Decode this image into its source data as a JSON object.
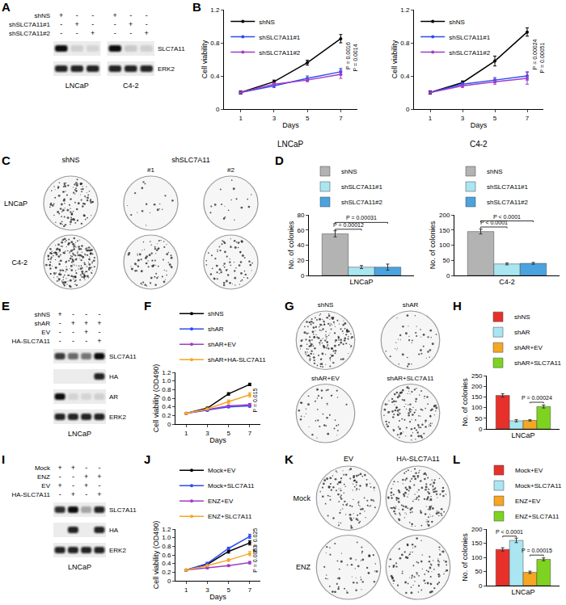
{
  "panel_labels": [
    "A",
    "B",
    "C",
    "D",
    "E",
    "F",
    "G",
    "H",
    "I",
    "J",
    "K",
    "L"
  ],
  "blots": [
    {
      "conditions": [
        {
          "label": "shNS",
          "signs": [
            "+",
            "-",
            "-",
            "+",
            "-",
            "-"
          ]
        },
        {
          "label": "shSLC7A11#1",
          "signs": [
            "-",
            "+",
            "-",
            "-",
            "+",
            "-"
          ]
        },
        {
          "label": "shSLC7A11#2",
          "signs": [
            "-",
            "-",
            "+",
            "-",
            "-",
            "+"
          ]
        }
      ],
      "groups": [
        {
          "name": "LNCaP",
          "size": 3
        },
        {
          "name": "C4-2",
          "size": 3
        }
      ],
      "bands": [
        {
          "name": "SLC7A11",
          "intensity": [
            1,
            0.12,
            0.1,
            1,
            0.15,
            0.12
          ]
        },
        {
          "name": "ERK2",
          "intensity": [
            0.9,
            0.9,
            0.9,
            0.9,
            0.9,
            0.9
          ]
        }
      ]
    },
    {
      "conditions": [
        {
          "label": "shNS",
          "signs": [
            "+",
            "-",
            "-",
            "-"
          ]
        },
        {
          "label": "shAR",
          "signs": [
            "-",
            "+",
            "+",
            "+"
          ]
        },
        {
          "label": "EV",
          "signs": [
            "-",
            "-",
            "+",
            "-"
          ]
        },
        {
          "label": "HA-SLC7A11",
          "signs": [
            "-",
            "-",
            "-",
            "+"
          ]
        }
      ],
      "groups": [
        {
          "name": "LNCaP",
          "size": 4
        }
      ],
      "bands": [
        {
          "name": "SLC7A11",
          "intensity": [
            0.8,
            0.6,
            0.55,
            1
          ]
        },
        {
          "name": "HA",
          "intensity": [
            0,
            0,
            0,
            0.9
          ]
        },
        {
          "name": "AR",
          "intensity": [
            1,
            0.1,
            0.1,
            0.12
          ]
        },
        {
          "name": "ERK2",
          "intensity": [
            0.9,
            0.9,
            0.9,
            0.9
          ]
        }
      ]
    },
    {
      "conditions": [
        {
          "label": "Mock",
          "signs": [
            "+",
            "+",
            "-",
            "-"
          ]
        },
        {
          "label": "ENZ",
          "signs": [
            "-",
            "-",
            "+",
            "+"
          ]
        },
        {
          "label": "EV",
          "signs": [
            "+",
            "-",
            "+",
            "-"
          ]
        },
        {
          "label": "HA-SLC7A11",
          "signs": [
            "-",
            "+",
            "-",
            "+"
          ]
        }
      ],
      "groups": [
        {
          "name": "LNCaP",
          "size": 4
        }
      ],
      "bands": [
        {
          "name": "SLC7A11",
          "intensity": [
            0.85,
            1,
            0.35,
            0.9
          ]
        },
        {
          "name": "HA",
          "intensity": [
            0,
            0.9,
            0,
            0.9
          ]
        },
        {
          "name": "ERK2",
          "intensity": [
            0.9,
            0.9,
            0.9,
            0.9
          ]
        }
      ]
    }
  ],
  "colony_images": [
    {
      "headers": [
        {
          "text": "shNS",
          "span": [
            0,
            0
          ]
        },
        {
          "text": "shSLC7A11",
          "span": [
            1,
            2
          ]
        }
      ],
      "subheaders": [
        null,
        "#1",
        "#2"
      ],
      "rows": [
        "LNCaP",
        "C4-2"
      ],
      "density": [
        [
          0.5,
          0.08,
          0.08
        ],
        [
          1,
          0.35,
          0.35
        ]
      ]
    },
    {
      "cell_labels": [
        [
          "shNS",
          "shAR"
        ],
        [
          "shAR+EV",
          "shAR+SLC7A11"
        ]
      ],
      "density": [
        [
          0.8,
          0.2
        ],
        [
          0.2,
          0.6
        ]
      ]
    },
    {
      "headers": [
        {
          "text": "EV",
          "span": [
            0,
            0
          ]
        },
        {
          "text": "HA-SLC7A11",
          "span": [
            1,
            1
          ]
        }
      ],
      "rows": [
        "Mock",
        "ENZ"
      ],
      "density": [
        [
          0.55,
          0.75
        ],
        [
          0.25,
          0.45
        ]
      ]
    }
  ],
  "chart_data": [
    {
      "type": "line",
      "title": "LNCaP",
      "x_label": "Days",
      "y_label": "Cell viability",
      "x": [
        1,
        3,
        5,
        7
      ],
      "xlim": [
        0,
        8
      ],
      "xticks": [
        1,
        3,
        5,
        7
      ],
      "ylim": [
        0,
        1.2
      ],
      "yticks": [
        0,
        0.4,
        0.8,
        1.2
      ],
      "legend": "upper left",
      "marker": "circle",
      "series": [
        {
          "name": "shNS",
          "color": "#000000",
          "values": [
            0.2,
            0.33,
            0.56,
            0.85
          ],
          "errors": [
            0.02,
            0.02,
            0.03,
            0.05
          ]
        },
        {
          "name": "shSLC7A11#1",
          "color": "#2c4bf0",
          "values": [
            0.2,
            0.28,
            0.37,
            0.45
          ],
          "errors": [
            0.01,
            0.02,
            0.03,
            0.04
          ]
        },
        {
          "name": "shSLC7A11#2",
          "color": "#a03cc8",
          "values": [
            0.2,
            0.3,
            0.35,
            0.42
          ],
          "errors": [
            0.01,
            0.02,
            0.02,
            0.05
          ]
        }
      ],
      "annotations": [
        {
          "text": "P = 0.0016",
          "x": 7.45,
          "y": 0.64
        },
        {
          "text": "P = 0.0014",
          "x": 7.9,
          "y": 0.62
        }
      ]
    },
    {
      "type": "line",
      "title": "C4-2",
      "x_label": "Days",
      "y_label": "Cell viability",
      "x": [
        1,
        3,
        5,
        7
      ],
      "xlim": [
        0,
        8
      ],
      "xticks": [
        1,
        3,
        5,
        7
      ],
      "ylim": [
        0,
        1.2
      ],
      "yticks": [
        0,
        0.4,
        0.8,
        1.2
      ],
      "legend": "upper left",
      "marker": "circle",
      "series": [
        {
          "name": "shNS",
          "color": "#000000",
          "values": [
            0.2,
            0.32,
            0.58,
            0.93
          ],
          "errors": [
            0.02,
            0.02,
            0.06,
            0.05
          ]
        },
        {
          "name": "shSLC7A11#1",
          "color": "#2c4bf0",
          "values": [
            0.2,
            0.3,
            0.35,
            0.4
          ],
          "errors": [
            0.01,
            0.02,
            0.03,
            0.05
          ]
        },
        {
          "name": "shSLC7A11#2",
          "color": "#a03cc8",
          "values": [
            0.2,
            0.28,
            0.33,
            0.37
          ],
          "errors": [
            0.01,
            0.02,
            0.03,
            0.07
          ]
        }
      ],
      "annotations": [
        {
          "text": "P = 0.00024",
          "x": 7.45,
          "y": 0.66
        },
        {
          "text": "P = 0.00051",
          "x": 7.9,
          "y": 0.62
        }
      ]
    },
    {
      "type": "bar",
      "x_label": "LNCaP",
      "y_label": "No. of colonies",
      "ylim": [
        0,
        80
      ],
      "yticks": [
        0,
        20,
        40,
        60,
        80
      ],
      "legend": "top",
      "tick_labels": "y",
      "series": [
        {
          "name": "shNS",
          "color": "#b3b3b3",
          "values": [
            55
          ],
          "errors": [
            4
          ]
        },
        {
          "name": "shSLC7A11#1",
          "color": "#a9e6f2",
          "values": [
            11
          ],
          "errors": [
            2
          ]
        },
        {
          "name": "shSLC7A11#2",
          "color": "#4aa3df",
          "values": [
            11
          ],
          "errors": [
            4
          ]
        }
      ],
      "annotations": [
        {
          "text": "P = 0.00031",
          "from": 0,
          "to": 2,
          "y": 70
        },
        {
          "text": "P = 0.00012",
          "from": 0,
          "to": 1,
          "y": 61
        }
      ]
    },
    {
      "type": "bar",
      "x_label": "C4-2",
      "y_label": "No. of colonies",
      "ylim": [
        0,
        200
      ],
      "yticks": [
        0,
        50,
        100,
        150,
        200
      ],
      "legend": "top",
      "tick_labels": "y",
      "series": [
        {
          "name": "shNS",
          "color": "#b3b3b3",
          "values": [
            145
          ],
          "errors": [
            8
          ]
        },
        {
          "name": "shSLC7A11#1",
          "color": "#a9e6f2",
          "values": [
            38
          ],
          "errors": [
            3
          ]
        },
        {
          "name": "shSLC7A11#2",
          "color": "#4aa3df",
          "values": [
            40
          ],
          "errors": [
            3
          ]
        }
      ],
      "annotations": [
        {
          "text": "P < 0.0001",
          "from": 0,
          "to": 2,
          "y": 180
        },
        {
          "text": "P < 0.0001",
          "from": 0,
          "to": 1,
          "y": 160
        }
      ]
    },
    {
      "type": "line",
      "x_label": "Days",
      "y_label": "Cell viability (OD490)",
      "x": [
        1,
        3,
        5,
        7
      ],
      "xlim": [
        0,
        8
      ],
      "xticks": [
        1,
        3,
        5,
        7
      ],
      "ylim": [
        0,
        1.2
      ],
      "yticks": [
        0,
        0.2,
        0.4,
        0.6,
        0.8,
        {
          "value": 1,
          "label": "1.0"
        },
        1.2
      ],
      "legend": "top",
      "marker": "circle",
      "series": [
        {
          "name": "shNS",
          "color": "#000000",
          "values": [
            0.25,
            0.37,
            0.7,
            0.92
          ],
          "errors": [
            0.02,
            0.02,
            0.03,
            0.03
          ]
        },
        {
          "name": "shAR",
          "color": "#2c4bf0",
          "values": [
            0.25,
            0.32,
            0.4,
            0.42
          ],
          "errors": [
            0.01,
            0.02,
            0.02,
            0.03
          ]
        },
        {
          "name": "shAR+EV",
          "color": "#a03cc8",
          "values": [
            0.25,
            0.33,
            0.42,
            0.45
          ],
          "errors": [
            0.01,
            0.02,
            0.02,
            0.03
          ]
        },
        {
          "name": "shAR+HA-SLC7A11",
          "color": "#f5a623",
          "values": [
            0.25,
            0.35,
            0.52,
            0.68
          ],
          "errors": [
            0.02,
            0.02,
            0.04,
            0.05
          ]
        }
      ],
      "annotations": [
        {
          "text": "P = 0.015",
          "x": 7.5,
          "y": 0.56
        }
      ]
    },
    {
      "type": "bar",
      "x_label": "LNCaP",
      "y_label": "No. of colonies",
      "ylim": [
        0,
        250
      ],
      "yticks": [
        0,
        50,
        100,
        150,
        200,
        250
      ],
      "legend": "top",
      "tick_labels": "y",
      "series": [
        {
          "name": "shNS",
          "color": "#e8302a",
          "values": [
            157
          ],
          "errors": [
            8
          ]
        },
        {
          "name": "shAR",
          "color": "#a9e6f2",
          "values": [
            38
          ],
          "errors": [
            5
          ]
        },
        {
          "name": "shAR+EV",
          "color": "#f5a623",
          "values": [
            40
          ],
          "errors": [
            3
          ]
        },
        {
          "name": "shAR+SLC7A11",
          "color": "#7ed321",
          "values": [
            105
          ],
          "errors": [
            7
          ]
        }
      ],
      "annotations": [
        {
          "text": "P = 0.00024",
          "from": 2,
          "to": 3,
          "y": 125
        }
      ]
    },
    {
      "type": "line",
      "x_label": "Days",
      "y_label": "Cell viability (OD490)",
      "x": [
        1,
        3,
        5,
        7
      ],
      "xlim": [
        0,
        8
      ],
      "xticks": [
        1,
        3,
        5,
        7
      ],
      "ylim": [
        0,
        1.2
      ],
      "yticks": [
        0,
        0.2,
        0.4,
        0.6,
        0.8,
        {
          "value": 1,
          "label": "1.0"
        },
        1.2
      ],
      "legend": "top",
      "marker": "circle",
      "series": [
        {
          "name": "Mock+EV",
          "color": "#000000",
          "values": [
            0.25,
            0.38,
            0.68,
            0.88
          ],
          "errors": [
            0.02,
            0.03,
            0.04,
            0.05
          ]
        },
        {
          "name": "Mock+SLC7A11",
          "color": "#2c4bf0",
          "values": [
            0.25,
            0.4,
            0.75,
            1.03
          ],
          "errors": [
            0.02,
            0.03,
            0.03,
            0.05
          ]
        },
        {
          "name": "ENZ+EV",
          "color": "#a03cc8",
          "values": [
            0.25,
            0.3,
            0.35,
            0.42
          ],
          "errors": [
            0.01,
            0.02,
            0.02,
            0.03
          ]
        },
        {
          "name": "ENZ+SLC7A11",
          "color": "#f5a623",
          "values": [
            0.25,
            0.35,
            0.48,
            0.63
          ],
          "errors": [
            0.02,
            0.02,
            0.03,
            0.05
          ]
        }
      ],
      "annotations": [
        {
          "text": "P = 0.025",
          "x": 7.5,
          "y": 0.95
        },
        {
          "text": "P = 0.0053",
          "x": 7.5,
          "y": 0.52
        }
      ]
    },
    {
      "type": "bar",
      "x_label": "LNCaP",
      "y_label": "No. of colonies",
      "ylim": [
        0,
        200
      ],
      "yticks": [
        0,
        50,
        100,
        150,
        200
      ],
      "legend": "top",
      "tick_labels": "y",
      "series": [
        {
          "name": "Mock+EV",
          "color": "#e8302a",
          "values": [
            128
          ],
          "errors": [
            6
          ]
        },
        {
          "name": "Mock+SLC7A11",
          "color": "#a9e6f2",
          "values": [
            160
          ],
          "errors": [
            8
          ]
        },
        {
          "name": "ENZ+EV",
          "color": "#f5a623",
          "values": [
            47
          ],
          "errors": [
            4
          ]
        },
        {
          "name": "ENZ+SLC7A11",
          "color": "#7ed321",
          "values": [
            93
          ],
          "errors": [
            5
          ]
        }
      ],
      "annotations": [
        {
          "text": "P < 0.0001",
          "from": 0,
          "to": 1,
          "y": 175
        },
        {
          "text": "P = 0.00015",
          "from": 2,
          "to": 3,
          "y": 108
        }
      ]
    }
  ]
}
